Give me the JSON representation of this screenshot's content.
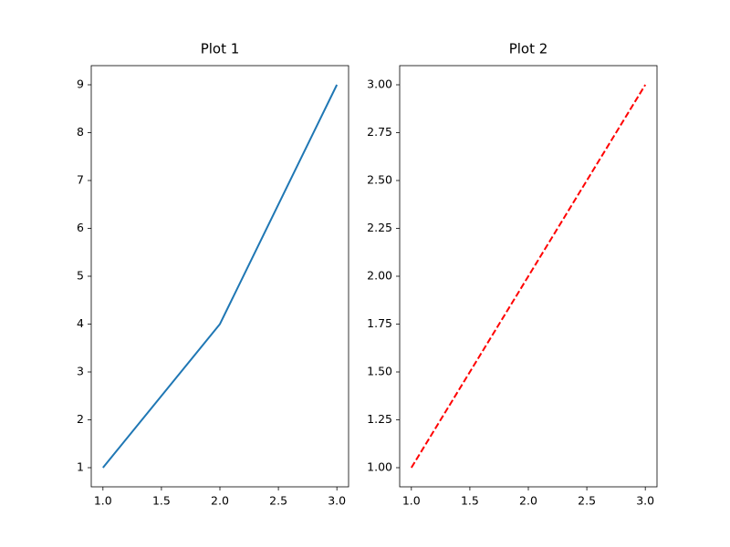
{
  "chart_data": [
    {
      "type": "line",
      "title": "Plot 1",
      "x": [
        1,
        2,
        3
      ],
      "values": [
        1,
        4,
        9
      ],
      "color": "#1f77b4",
      "linestyle": "solid",
      "xlim": [
        0.9,
        3.1
      ],
      "ylim": [
        0.6,
        9.4
      ],
      "xticks": [
        {
          "value": 1,
          "label": "1.0"
        },
        1.5,
        {
          "value": 2,
          "label": "2.0"
        },
        2.5,
        {
          "value": 3,
          "label": "3.0"
        }
      ],
      "yticks": [
        1,
        2,
        3,
        4,
        5,
        6,
        7,
        8,
        9
      ]
    },
    {
      "type": "line",
      "title": "Plot 2",
      "x": [
        1,
        2,
        3
      ],
      "values": [
        1,
        2,
        3
      ],
      "color": "#ff0000",
      "linestyle": "dashed",
      "xlim": [
        0.9,
        3.1
      ],
      "ylim": [
        0.9,
        3.1
      ],
      "xticks": [
        {
          "value": 1,
          "label": "1.0"
        },
        1.5,
        {
          "value": 2,
          "label": "2.0"
        },
        2.5,
        {
          "value": 3,
          "label": "3.0"
        }
      ],
      "yticks": [
        {
          "value": 1,
          "label": "1.00"
        },
        1.25,
        {
          "value": 1.5,
          "label": "1.50"
        },
        1.75,
        {
          "value": 2,
          "label": "2.00"
        },
        2.25,
        {
          "value": 2.5,
          "label": "2.50"
        },
        2.75,
        {
          "value": 3,
          "label": "3.00"
        }
      ]
    }
  ]
}
